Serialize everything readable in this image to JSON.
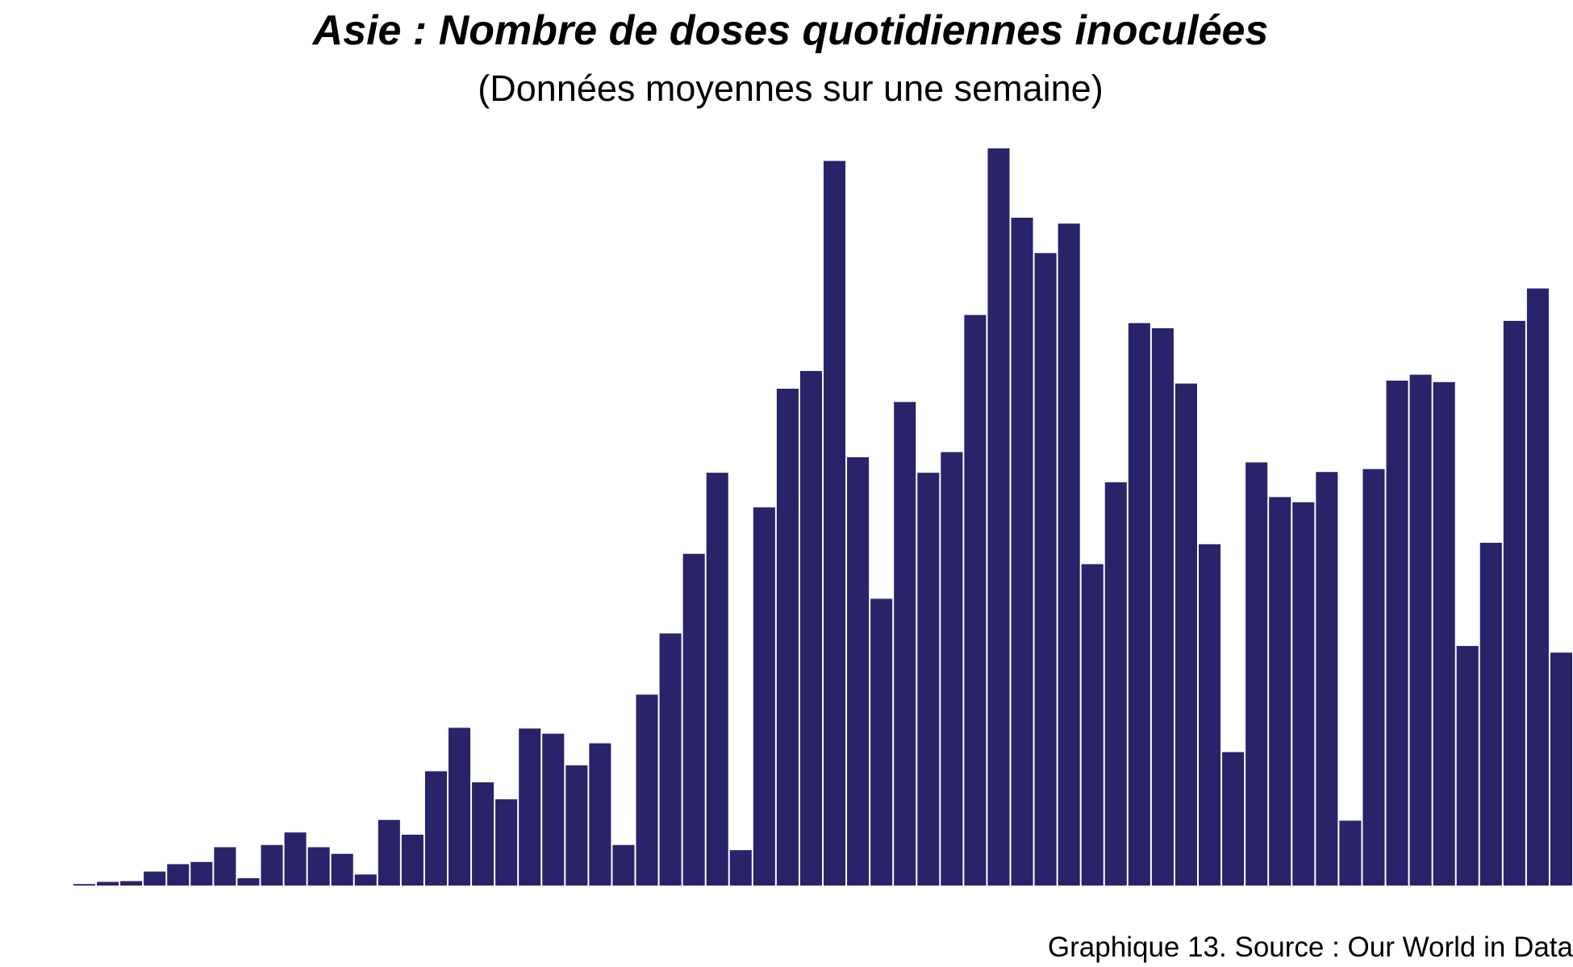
{
  "chart_data": {
    "type": "bar",
    "title": "Asie : Nombre de doses quotidiennes inoculées",
    "subtitle": "(Données moyennes sur une semaine)",
    "caption": "Graphique 13. Source : Our World in Data",
    "xlabel": "",
    "ylabel": "",
    "ylim": [
      0,
      100
    ],
    "grid": false,
    "bar_color": "#29236a",
    "values": [
      0.2,
      0.5,
      0.6,
      1.9,
      2.9,
      3.2,
      5.2,
      1.0,
      5.5,
      7.2,
      5.2,
      4.3,
      1.5,
      8.9,
      6.9,
      15.5,
      21.4,
      14.0,
      11.7,
      21.3,
      20.6,
      16.3,
      19.3,
      5.5,
      25.9,
      34.2,
      45.0,
      56.0,
      4.8,
      51.3,
      67.4,
      69.8,
      98.3,
      58.1,
      38.9,
      65.6,
      56.0,
      58.8,
      77.4,
      100.0,
      90.6,
      85.8,
      89.8,
      43.6,
      54.7,
      76.3,
      75.6,
      68.1,
      46.3,
      18.1,
      57.4,
      52.7,
      52.0,
      56.1,
      8.8,
      56.5,
      68.5,
      69.3,
      68.3,
      32.5,
      46.5,
      76.6,
      81.0,
      31.6
    ]
  }
}
